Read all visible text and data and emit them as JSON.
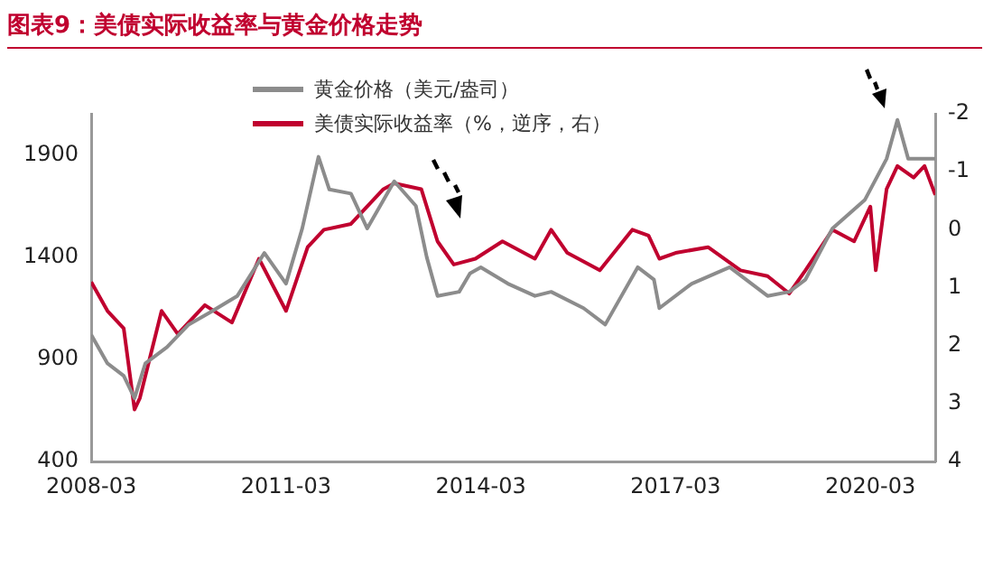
{
  "chart_data": {
    "type": "line",
    "title": "图表9：美债实际收益率与黄金价格走势",
    "series": [
      {
        "name": "黄金价格（美元/盎司）",
        "color": "#8c8c8c",
        "x": [
          "2008-03",
          "2008-06",
          "2008-09",
          "2008-11",
          "2009-01",
          "2009-05",
          "2009-09",
          "2010-01",
          "2010-06",
          "2010-11",
          "2011-03",
          "2011-06",
          "2011-09",
          "2011-11",
          "2012-03",
          "2012-06",
          "2012-11",
          "2013-03",
          "2013-05",
          "2013-07",
          "2013-11",
          "2014-01",
          "2014-03",
          "2014-08",
          "2015-01",
          "2015-04",
          "2015-10",
          "2016-02",
          "2016-08",
          "2016-11",
          "2016-12",
          "2017-06",
          "2018-01",
          "2018-08",
          "2018-12",
          "2019-03",
          "2019-08",
          "2020-02",
          "2020-06",
          "2020-08",
          "2020-10",
          "2021-03"
        ],
        "values": [
          1020,
          880,
          820,
          710,
          880,
          960,
          1070,
          1130,
          1210,
          1420,
          1270,
          1540,
          1890,
          1730,
          1710,
          1540,
          1770,
          1650,
          1400,
          1210,
          1230,
          1320,
          1350,
          1270,
          1210,
          1230,
          1150,
          1070,
          1350,
          1290,
          1150,
          1270,
          1350,
          1210,
          1230,
          1290,
          1540,
          1680,
          1880,
          2070,
          1880,
          1880
        ]
      },
      {
        "name": "美债实际收益率（%，逆序，右）",
        "color": "#c0002f",
        "axis": "y2",
        "x": [
          "2008-03",
          "2008-06",
          "2008-09",
          "2008-11",
          "2008-12",
          "2009-04",
          "2009-07",
          "2009-12",
          "2010-05",
          "2010-10",
          "2011-03",
          "2011-07",
          "2011-10",
          "2012-03",
          "2012-09",
          "2012-11",
          "2013-04",
          "2013-07",
          "2013-10",
          "2014-02",
          "2014-07",
          "2015-01",
          "2015-04",
          "2015-07",
          "2016-01",
          "2016-07",
          "2016-10",
          "2016-12",
          "2017-03",
          "2017-09",
          "2018-03",
          "2018-08",
          "2018-12",
          "2019-03",
          "2019-08",
          "2019-12",
          "2020-03",
          "2020-04",
          "2020-06",
          "2020-08",
          "2020-11",
          "2021-01",
          "2021-03"
        ],
        "values": [
          0.9,
          1.4,
          1.7,
          3.1,
          2.9,
          1.4,
          1.8,
          1.3,
          1.6,
          0.5,
          1.4,
          0.3,
          0,
          -0.1,
          -0.7,
          -0.8,
          -0.7,
          0.2,
          0.6,
          0.5,
          0.2,
          0.5,
          0,
          0.4,
          0.7,
          0,
          0.1,
          0.5,
          0.4,
          0.3,
          0.7,
          0.8,
          1.1,
          0.7,
          0,
          0.2,
          -0.4,
          0.7,
          -0.7,
          -1.1,
          -0.9,
          -1.1,
          -0.6
        ]
      }
    ],
    "xlim": [
      "2008-03",
      "2021-03"
    ],
    "xticks": [
      "2008-03",
      "2011-03",
      "2014-03",
      "2017-03",
      "2020-03"
    ],
    "ylim": [
      400,
      2100
    ],
    "yticks": [
      400,
      900,
      1400,
      1900
    ],
    "y2lim": [
      4,
      -2
    ],
    "y2ticks": [
      -2,
      -1,
      0,
      1,
      2,
      3,
      4
    ],
    "legend": "top left",
    "line_style": "solid"
  }
}
